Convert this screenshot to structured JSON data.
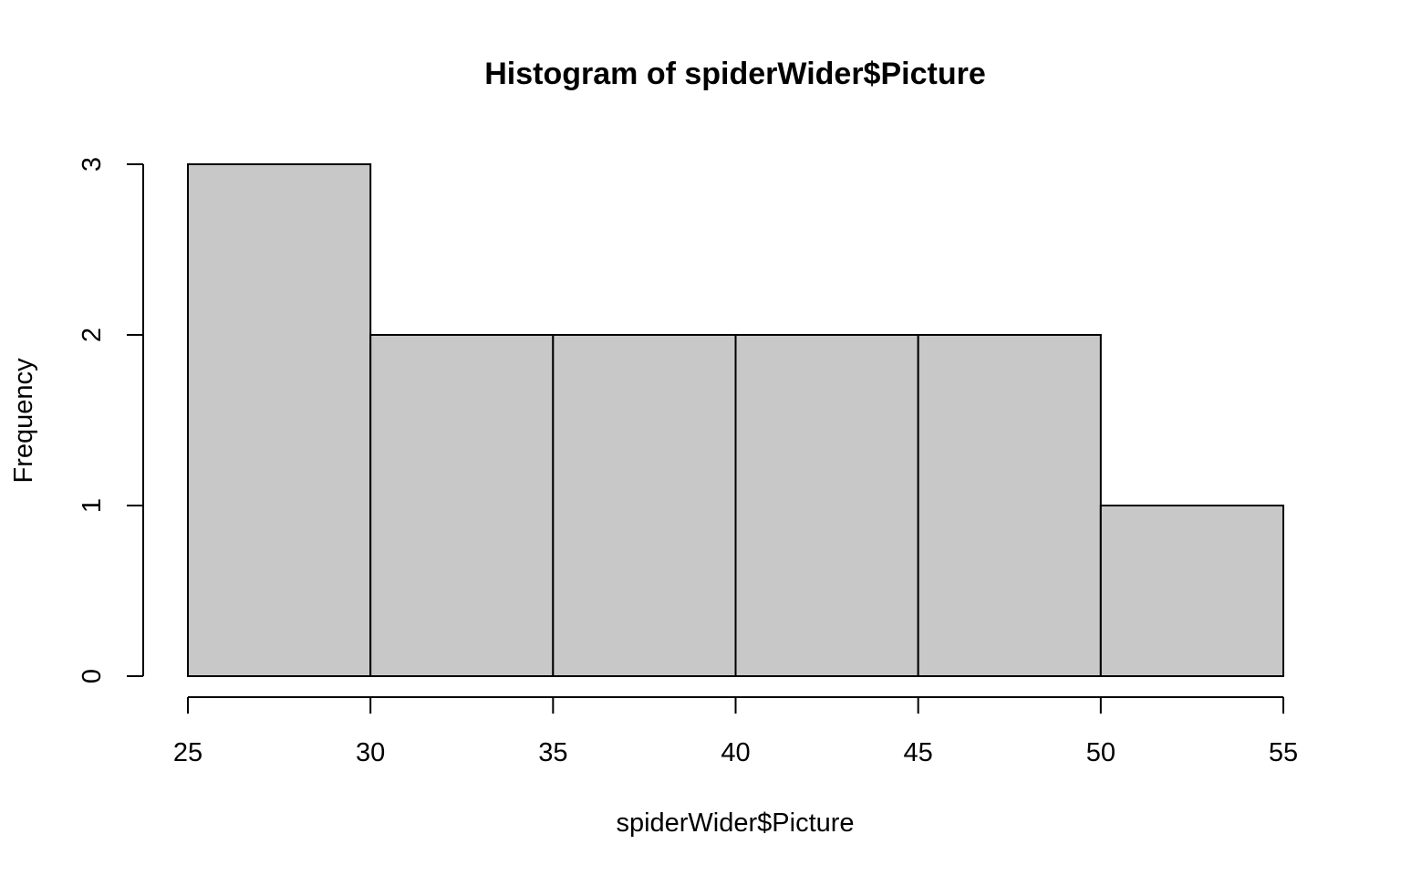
{
  "chart_data": {
    "type": "bar",
    "title": "Histogram of spiderWider$Picture",
    "xlabel": "spiderWider$Picture",
    "ylabel": "Frequency",
    "bins": [
      {
        "start": 25,
        "end": 30,
        "count": 3
      },
      {
        "start": 30,
        "end": 35,
        "count": 2
      },
      {
        "start": 35,
        "end": 40,
        "count": 2
      },
      {
        "start": 40,
        "end": 45,
        "count": 2
      },
      {
        "start": 45,
        "end": 50,
        "count": 2
      },
      {
        "start": 50,
        "end": 55,
        "count": 1
      }
    ],
    "x_ticks": [
      "25",
      "30",
      "35",
      "40",
      "45",
      "50",
      "55"
    ],
    "y_ticks": [
      "0",
      "1",
      "2",
      "3"
    ],
    "xlim": [
      25,
      55
    ],
    "ylim": [
      0,
      3
    ],
    "grid": false,
    "legend": "none",
    "colors": {
      "bar_fill": "#c8c8c8",
      "bar_stroke": "#000000",
      "axis": "#000000",
      "background": "#ffffff"
    }
  }
}
